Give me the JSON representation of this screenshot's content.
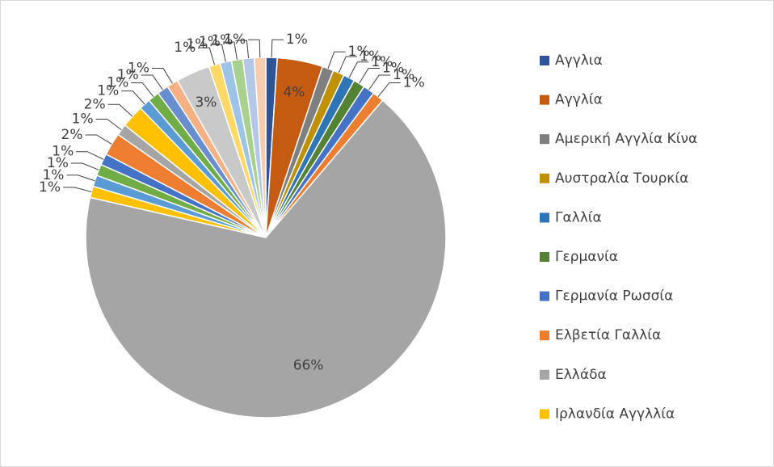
{
  "chart_data": {
    "type": "pie",
    "categories": [
      "Αγγλια",
      "Αγγλία",
      "Αμερική Αγγλία Κίνα",
      "Αυστραλία Τουρκία",
      "Γαλλία",
      "Γερμανία",
      "Γερμανία Ρωσσία",
      "Ελβετία Γαλλία",
      "Ελλάδα",
      "Ιρλανδία Αγγλλία",
      null,
      null,
      null,
      null,
      null,
      null,
      null,
      null,
      null,
      null,
      null,
      null,
      null,
      null,
      null,
      null
    ],
    "values": [
      1,
      4,
      1,
      1,
      1,
      1,
      1,
      1,
      66,
      1,
      1,
      1,
      1,
      2,
      1,
      2,
      1,
      1,
      1,
      1,
      3,
      1,
      1,
      1,
      1,
      1
    ],
    "value_labels": [
      "1%",
      "4%",
      "1%",
      "1%",
      "1%",
      "1%",
      "1%",
      "1%",
      "66%",
      "1%",
      "1%",
      "1%",
      "1%",
      "2%",
      "1%",
      "2%",
      "1%",
      "1%",
      "1%",
      "1%",
      "3%",
      "1%",
      "1%",
      "1%",
      "1%",
      "1%"
    ],
    "colors": [
      "#2F5597",
      "#C55A11",
      "#7F7F7F",
      "#BF9000",
      "#2E75B6",
      "#548235",
      "#4472C4",
      "#ED7D31",
      "#A5A5A5",
      "#FFC000",
      "#5B9BD5",
      "#70AD47",
      "#4472C4",
      "#ED7D31",
      "#A5A5A5",
      "#FFC000",
      "#5B9BD5",
      "#70AD47",
      "#698ED0",
      "#F4B183",
      "#C9C9C9",
      "#FFD966",
      "#9DC3E6",
      "#A9D18E",
      "#B4C7E7",
      "#F8CBAD"
    ],
    "legend": "right"
  }
}
